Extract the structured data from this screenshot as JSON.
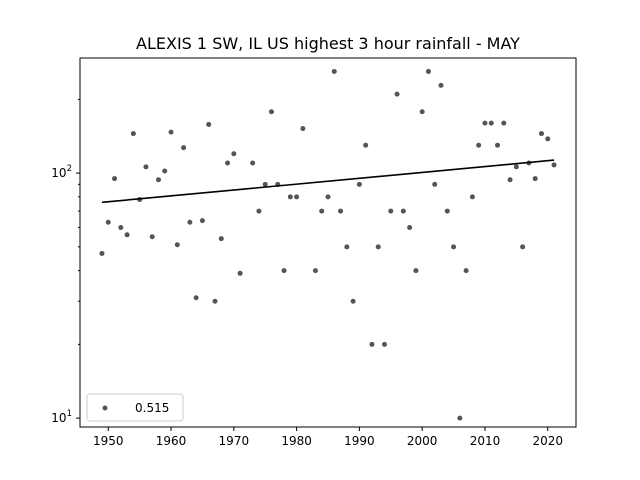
{
  "chart_data": {
    "type": "scatter",
    "title": "ALEXIS 1 SW, IL US highest 3 hour rainfall - MAY",
    "xlabel": "",
    "ylabel": "",
    "xlim": [
      1945.5,
      2024.5
    ],
    "ylim": [
      9.2,
      295
    ],
    "yscale": "log",
    "xticks": [
      1950,
      1960,
      1970,
      1980,
      1990,
      2000,
      2010,
      2020
    ],
    "yticks": [
      {
        "value": 10,
        "base": "10",
        "exp": "1"
      },
      {
        "value": 100,
        "base": "10",
        "exp": "2"
      }
    ],
    "grid": false,
    "legend": {
      "placement": "lower-left",
      "label": "0.515"
    },
    "colors": {
      "points": "#555555",
      "trend": "#000000"
    },
    "trend": {
      "x": [
        1949,
        2021
      ],
      "y": [
        76,
        113
      ]
    },
    "series": [
      {
        "x": [
          1949,
          1950,
          1951,
          1952,
          1953,
          1954,
          1955,
          1956,
          1957,
          1958,
          1959,
          1960,
          1961,
          1962,
          1963,
          1964,
          1965,
          1966,
          1967,
          1968,
          1969,
          1970,
          1971,
          1973,
          1974,
          1975,
          1976,
          1977,
          1978,
          1979,
          1980,
          1981,
          1983,
          1984,
          1985,
          1986,
          1987,
          1988,
          1989,
          1990,
          1991,
          1992,
          1993,
          1994,
          1995,
          1996,
          1997,
          1998,
          1999,
          2000,
          2001,
          2002,
          2003,
          2004,
          2005,
          2006,
          2007,
          2008,
          2009,
          2010,
          2011,
          2012,
          2013,
          2014,
          2015,
          2016,
          2017,
          2018,
          2019,
          2020,
          2021
        ],
        "y": [
          47,
          63,
          95,
          60,
          56,
          145,
          78,
          106,
          55,
          94,
          102,
          147,
          51,
          127,
          63,
          31,
          64,
          158,
          30,
          54,
          110,
          120,
          39,
          110,
          70,
          90,
          178,
          90,
          40,
          80,
          80,
          152,
          40,
          70,
          80,
          260,
          70,
          50,
          30,
          90,
          130,
          20,
          50,
          20,
          70,
          210,
          70,
          60,
          40,
          178,
          260,
          90,
          228,
          70,
          50,
          10,
          40,
          80,
          130,
          160,
          160,
          130,
          160,
          94,
          106,
          50,
          110,
          95,
          145,
          138,
          108
        ]
      }
    ]
  }
}
